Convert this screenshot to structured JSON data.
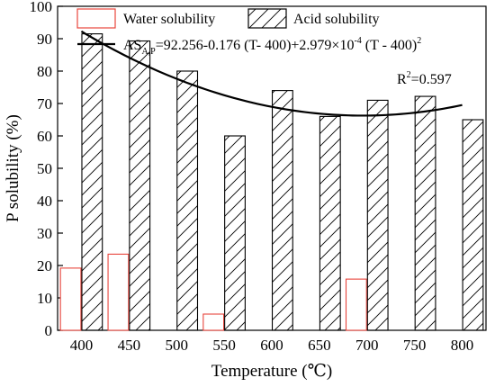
{
  "chart_data": {
    "type": "bar",
    "categories": [
      "400",
      "450",
      "500",
      "550",
      "600",
      "650",
      "700",
      "750",
      "800"
    ],
    "x": [
      400,
      450,
      500,
      550,
      600,
      650,
      700,
      750,
      800
    ],
    "series": [
      {
        "name": "Water solubility",
        "values": [
          19.2,
          23.5,
          null,
          5.0,
          null,
          null,
          15.8,
          null,
          null
        ],
        "color": "#e8453c",
        "pattern": "none"
      },
      {
        "name": "Acid solubility",
        "values": [
          91.5,
          89.3,
          80.0,
          60.0,
          74.0,
          66.0,
          71.0,
          72.2,
          65.0
        ],
        "color": "#000000",
        "pattern": "hatch"
      }
    ],
    "fit": {
      "label": "Quadratic fit of acid solubility",
      "intercept": 92.256,
      "linear": -0.176,
      "quadratic": 0.0002979,
      "x0": 400,
      "xrange": [
        400,
        800
      ]
    },
    "equation": {
      "lhs": "AS",
      "lhs_sub": "A,P",
      "rhs_1": "=92.256-0.176 (T- 400)+2.979×10",
      "exp_1": "-4",
      "rhs_2": " (T - 400)",
      "exp_2": "2"
    },
    "r2": {
      "base": "R",
      "sup": "2",
      "value": "=0.597"
    },
    "xlabel": "Temperature (℃)",
    "ylabel": "P solubility (%)",
    "ylim": [
      0,
      100
    ],
    "yticks": [
      0,
      10,
      20,
      30,
      40,
      50,
      60,
      70,
      80,
      90,
      100
    ],
    "grid": false,
    "legend": "top"
  }
}
